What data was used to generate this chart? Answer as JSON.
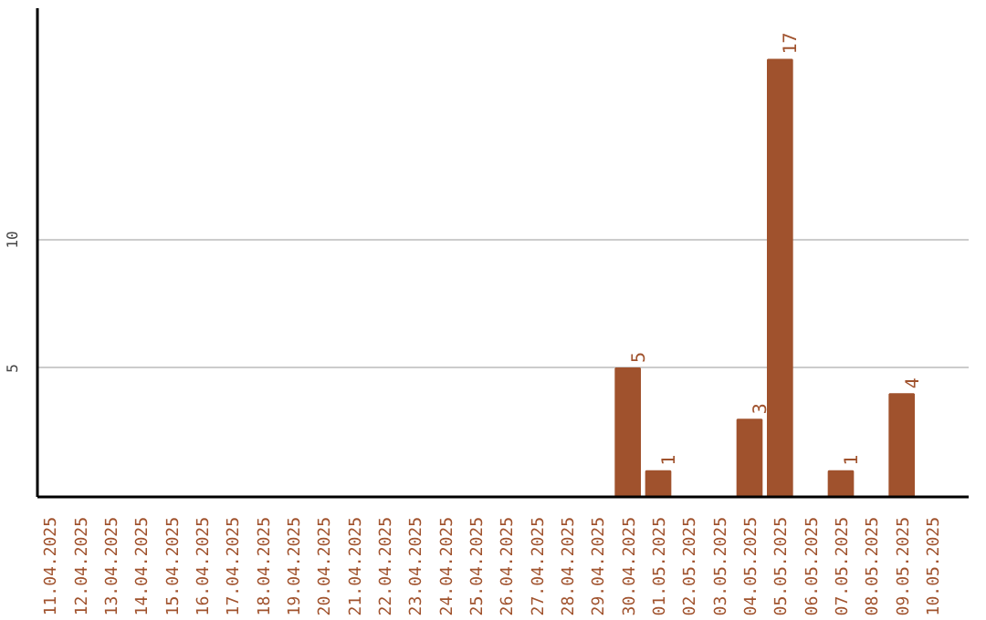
{
  "chart_data": {
    "type": "bar",
    "categories": [
      "11.04.2025",
      "12.04.2025",
      "13.04.2025",
      "14.04.2025",
      "15.04.2025",
      "16.04.2025",
      "17.04.2025",
      "18.04.2025",
      "19.04.2025",
      "20.04.2025",
      "21.04.2025",
      "22.04.2025",
      "23.04.2025",
      "24.04.2025",
      "25.04.2025",
      "26.04.2025",
      "27.04.2025",
      "28.04.2025",
      "29.04.2025",
      "30.04.2025",
      "01.05.2025",
      "02.05.2025",
      "03.05.2025",
      "04.05.2025",
      "05.05.2025",
      "06.05.2025",
      "07.05.2025",
      "08.05.2025",
      "09.05.2025",
      "10.05.2025"
    ],
    "values": [
      0,
      0,
      0,
      0,
      0,
      0,
      0,
      0,
      0,
      0,
      0,
      0,
      0,
      0,
      0,
      0,
      0,
      0,
      0,
      5,
      1,
      0,
      0,
      3,
      17,
      0,
      1,
      0,
      4,
      0
    ],
    "value_labels": [
      null,
      null,
      null,
      null,
      null,
      null,
      null,
      null,
      null,
      null,
      null,
      null,
      null,
      null,
      null,
      null,
      null,
      null,
      null,
      "5",
      "1",
      null,
      null,
      "3",
      "17",
      null,
      "1",
      null,
      "4",
      null
    ],
    "color": "#a0522d",
    "ylim": [
      0,
      19
    ],
    "yticks": [
      5,
      10
    ],
    "grid": "y"
  }
}
